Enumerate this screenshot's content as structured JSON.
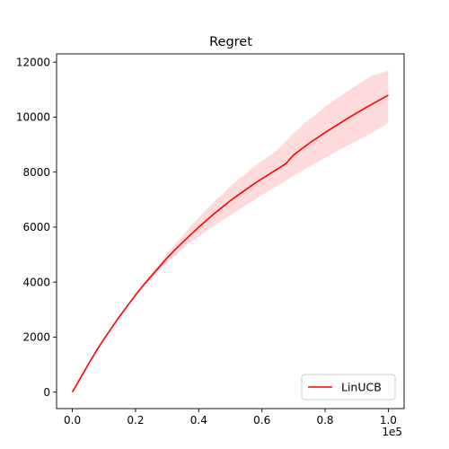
{
  "chart_data": {
    "type": "line",
    "title": "Regret",
    "xlabel": "",
    "ylabel": "",
    "x_exponent_label": "1e5",
    "xlim": [
      -0.05,
      1.05
    ],
    "ylim": [
      -600,
      12300
    ],
    "x_ticks": [
      0.0,
      0.2,
      0.4,
      0.6,
      0.8,
      1.0
    ],
    "x_tick_labels": [
      "0.0",
      "0.2",
      "0.4",
      "0.6",
      "0.8",
      "1.0"
    ],
    "y_ticks": [
      0,
      2000,
      4000,
      6000,
      8000,
      10000,
      12000
    ],
    "y_tick_labels": [
      "0",
      "2000",
      "4000",
      "6000",
      "8000",
      "10000",
      "12000"
    ],
    "grid": false,
    "legend_position": "lower-right",
    "series": [
      {
        "name": "LinUCB",
        "color": "#ff0000",
        "band_color": "#ffdada",
        "x": [
          0.0,
          0.025,
          0.05,
          0.075,
          0.1,
          0.125,
          0.15,
          0.175,
          0.2,
          0.225,
          0.25,
          0.275,
          0.3,
          0.325,
          0.35,
          0.375,
          0.4,
          0.425,
          0.45,
          0.475,
          0.5,
          0.525,
          0.55,
          0.575,
          0.6,
          0.625,
          0.65,
          0.675,
          0.7,
          0.725,
          0.75,
          0.775,
          0.8,
          0.825,
          0.85,
          0.875,
          0.9,
          0.925,
          0.95,
          0.975,
          1.0
        ],
        "y": [
          0,
          500,
          1000,
          1480,
          1930,
          2350,
          2760,
          3150,
          3530,
          3890,
          4220,
          4550,
          4880,
          5180,
          5460,
          5730,
          6000,
          6250,
          6500,
          6730,
          6960,
          7170,
          7370,
          7570,
          7760,
          7940,
          8120,
          8300,
          8620,
          8840,
          9050,
          9250,
          9440,
          9620,
          9800,
          9980,
          10150,
          10320,
          10480,
          10640,
          10800
        ],
        "lower": [
          0,
          500,
          1000,
          1480,
          1930,
          2350,
          2760,
          3150,
          3500,
          3820,
          4150,
          4450,
          4720,
          4970,
          5220,
          5450,
          5650,
          5860,
          6060,
          6260,
          6440,
          6620,
          6800,
          6980,
          7160,
          7340,
          7520,
          7690,
          7860,
          8030,
          8200,
          8360,
          8520,
          8680,
          8840,
          8990,
          9140,
          9290,
          9440,
          9600,
          9800
        ],
        "upper": [
          0,
          500,
          1000,
          1480,
          1930,
          2350,
          2760,
          3150,
          3560,
          3960,
          4300,
          4640,
          5040,
          5390,
          5710,
          6040,
          6350,
          6640,
          6940,
          7200,
          7480,
          7720,
          7960,
          8200,
          8400,
          8600,
          8820,
          9120,
          9420,
          9680,
          9920,
          10140,
          10380,
          10580,
          10780,
          10980,
          11160,
          11340,
          11520,
          11600,
          11700
        ]
      }
    ]
  }
}
